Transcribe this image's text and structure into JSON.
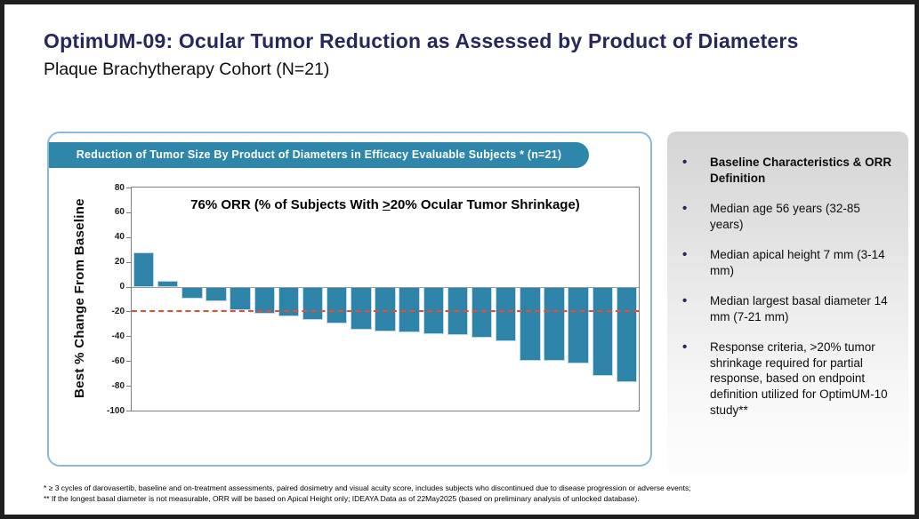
{
  "header": {
    "title": "OptimUM-09: Ocular Tumor Reduction as Assessed by Product of Diameters",
    "subtitle": "Plaque Brachytherapy Cohort (N=21)"
  },
  "chart_data": {
    "type": "bar",
    "title": "Reduction of Tumor Size By Product of Diameters in Efficacy Evaluable Subjects * (n=21)",
    "annotation": {
      "part1": "76% ORR (% of Subjects With ",
      "geq": ">",
      "part2": "20% Ocular Tumor Shrinkage)"
    },
    "ylabel": "Best % Change From Baseline",
    "xlabel": "",
    "ylim": [
      -100,
      80
    ],
    "yticks": [
      80,
      60,
      40,
      20,
      0,
      -20,
      -40,
      -60,
      -80,
      -100
    ],
    "reference_line": -20,
    "n_subjects": 21,
    "values": [
      28,
      5,
      -10,
      -12,
      -19,
      -22,
      -24,
      -27,
      -30,
      -35,
      -36,
      -37,
      -38,
      -39,
      -41,
      -44,
      -60,
      -60,
      -62,
      -72,
      -77
    ],
    "orr_percent": 76,
    "grid": false,
    "legend": "none"
  },
  "sidebar": {
    "items": [
      {
        "text": "Baseline Characteristics & ORR Definition",
        "bold": true
      },
      {
        "text": "Median age 56 years (32-85 years)",
        "bold": false
      },
      {
        "text": "Median apical height 7 mm (3-14 mm)",
        "bold": false
      },
      {
        "text": "Median largest basal diameter 14 mm (7-21 mm)",
        "bold": false
      },
      {
        "text": "Response criteria, >20% tumor shrinkage required for partial response, based on endpoint definition utilized for OptimUM-10 study**",
        "bold": false
      }
    ]
  },
  "footnotes": {
    "line1": "* ≥ 3 cycles of darovasertib, baseline and on-treatment assessments, paired dosimetry and visual acuity score, includes subjects who discontinued due to disease progression or adverse events;",
    "line2": "** If the longest basal diameter is not measurable, ORR will be based on Apical Height only; IDEAYA Data as of 22May2025 (based on preliminary analysis of unlocked database)."
  },
  "colors": {
    "title_navy": "#27275E",
    "banner_teal": "#2E86AB",
    "bar_teal": "#2E84A8",
    "reference_line_red": "#F04A2A",
    "panel_border_blue": "#8AB9DC",
    "slide_border": "#1F1F1F"
  }
}
